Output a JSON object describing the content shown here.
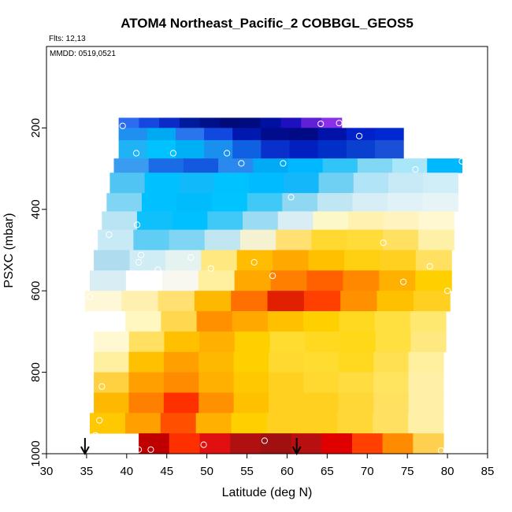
{
  "chart_data": {
    "type": "heatmap",
    "title": "ATOM4 Northeast_Pacific_2 COBBGL_GEOS5",
    "flights_label": "Flts: 12,13",
    "dates_label": "MMDD: 0519,0521",
    "xlabel": "Latitude (deg N)",
    "ylabel": "PSXC (mbar)",
    "xlim": [
      30,
      85
    ],
    "ylim": [
      1000,
      0
    ],
    "x_ticks": [
      "30",
      "35",
      "40",
      "45",
      "50",
      "55",
      "60",
      "65",
      "70",
      "75",
      "80",
      "85"
    ],
    "y_ticks": [
      "200",
      "400",
      "600",
      "800",
      "1000"
    ],
    "pressure_bands": [
      {
        "p_top": 175,
        "p_bot": 200,
        "lat_min": 39.0,
        "lat_max": 66.8,
        "colors": [
          "#2d6cf0",
          "#1448e0",
          "#0a2bc8",
          "#001a9e",
          "#00108a",
          "#000a78",
          "#000b80",
          "#0010a0",
          "#1e10c0",
          "#6020d8",
          "#8a30e8"
        ]
      },
      {
        "p_top": 200,
        "p_bot": 230,
        "lat_min": 39.0,
        "lat_max": 74.5,
        "colors": [
          "#1f8ff0",
          "#00aaf2",
          "#2a74ee",
          "#1048e0",
          "#0018b0",
          "#000c8c",
          "#000a84",
          "#0012a8",
          "#0022c8",
          "#0028d2"
        ]
      },
      {
        "p_top": 230,
        "p_bot": 275,
        "lat_min": 39.0,
        "lat_max": 74.5,
        "colors": [
          "#1fb2f5",
          "#00c2ff",
          "#00b0f5",
          "#1a90ee",
          "#1060e2",
          "#0a30cc",
          "#0020c0",
          "#0030c8",
          "#0a40d0",
          "#1a50d8"
        ]
      },
      {
        "p_top": 275,
        "p_bot": 310,
        "lat_min": 38.4,
        "lat_max": 81.8,
        "colors": [
          "#3a9cf0",
          "#1a6ce6",
          "#1458e0",
          "#2a88ee",
          "#00aaf5",
          "#00b8ff",
          "#30c4f8",
          "#80d8f4",
          "#a8e6fa",
          "#00b8ff"
        ]
      },
      {
        "p_top": 310,
        "p_bot": 360,
        "lat_min": 37.9,
        "lat_max": 81.3,
        "colors": [
          "#50c4f2",
          "#00c0ff",
          "#10bafa",
          "#00c2ff",
          "#00bbff",
          "#14b8fa",
          "#70d0f4",
          "#b0e4f6",
          "#c8eaf6",
          "#d0eef8"
        ]
      },
      {
        "p_top": 360,
        "p_bot": 405,
        "lat_min": 37.5,
        "lat_max": 81.3,
        "colors": [
          "#80d4f4",
          "#00c0ff",
          "#00bcfc",
          "#00c4ff",
          "#40c8f6",
          "#90d8f2",
          "#c0e6f4",
          "#d8eef6",
          "#e0f2f8",
          "#e6f4f8"
        ]
      },
      {
        "p_top": 405,
        "p_bot": 450,
        "lat_min": 36.9,
        "lat_max": 80.8,
        "colors": [
          "#b8e4f4",
          "#10c0fb",
          "#00c0ff",
          "#40c8f6",
          "#9cdcf2",
          "#d8eef4",
          "#fcf8c8",
          "#fff2b0",
          "#fff4c0",
          "#fff8d0"
        ]
      },
      {
        "p_top": 450,
        "p_bot": 500,
        "lat_min": 36.4,
        "lat_max": 80.8,
        "colors": [
          "#c8eaf6",
          "#60cef4",
          "#80d4f4",
          "#c0e6f2",
          "#f4f2d0",
          "#ffe070",
          "#ffd830",
          "#ffdc38",
          "#ffe060",
          "#fff0a8"
        ]
      },
      {
        "p_top": 500,
        "p_bot": 550,
        "lat_min": 35.9,
        "lat_max": 80.5,
        "colors": [
          "#b0dcf0",
          "#d0ecf4",
          "#e4f2f0",
          "#ffe880",
          "#ffbc00",
          "#ffa800",
          "#ffc000",
          "#ffd010",
          "#ffd020",
          "#ffe060"
        ]
      },
      {
        "p_top": 550,
        "p_bot": 600,
        "lat_min": 35.4,
        "lat_max": 80.5,
        "colors": [
          "#d8eef4",
          "#ffffff",
          "#f8f8f0",
          "#fff0a0",
          "#ffa800",
          "#ff8000",
          "#ff6000",
          "#ff8800",
          "#ffb000",
          "#ffd000"
        ]
      },
      {
        "p_top": 600,
        "p_bot": 650,
        "lat_min": 34.8,
        "lat_max": 80.3,
        "colors": [
          "#fff8d8",
          "#fff0b0",
          "#ffe070",
          "#ffb800",
          "#ff7000",
          "#e02000",
          "#ff4000",
          "#ff9000",
          "#ffc000",
          "#ffd020"
        ]
      },
      {
        "p_top": 650,
        "p_bot": 700,
        "lat_min": 35.4,
        "lat_max": 79.8,
        "colors": [
          "#ffffff",
          "#fff6c0",
          "#ffd850",
          "#ff9000",
          "#ffa800",
          "#ffc000",
          "#ffd000",
          "#ffd820",
          "#ffe040",
          "#ffe870"
        ]
      },
      {
        "p_top": 700,
        "p_bot": 750,
        "lat_min": 35.9,
        "lat_max": 79.8,
        "colors": [
          "#fff8d0",
          "#ffe060",
          "#ffc000",
          "#ffb000",
          "#ffd000",
          "#ffdc30",
          "#ffd820",
          "#ffd818",
          "#ffe040",
          "#ffe880"
        ]
      },
      {
        "p_top": 750,
        "p_bot": 800,
        "lat_min": 35.9,
        "lat_max": 79.5,
        "colors": [
          "#fff0a0",
          "#ffc000",
          "#ffa000",
          "#ffb800",
          "#ffd000",
          "#ffd830",
          "#ffdc30",
          "#ffd820",
          "#ffe050",
          "#fff0a0"
        ]
      },
      {
        "p_top": 800,
        "p_bot": 850,
        "lat_min": 35.9,
        "lat_max": 79.5,
        "colors": [
          "#ffd040",
          "#ffa000",
          "#ff8c00",
          "#ffb000",
          "#ffc800",
          "#ffd020",
          "#ffd830",
          "#ffdc40",
          "#ffe460",
          "#fff0a8"
        ]
      },
      {
        "p_top": 850,
        "p_bot": 900,
        "lat_min": 35.9,
        "lat_max": 79.5,
        "colors": [
          "#ffb800",
          "#ff8000",
          "#ff3000",
          "#ff9000",
          "#ffc000",
          "#ffd020",
          "#ffd020",
          "#ffd838",
          "#ffe060",
          "#fff0a8"
        ]
      },
      {
        "p_top": 900,
        "p_bot": 950,
        "lat_min": 35.4,
        "lat_max": 79.5,
        "colors": [
          "#ffc800",
          "#ffa000",
          "#ff5000",
          "#ffb000",
          "#ffd000",
          "#ffd020",
          "#ffd020",
          "#ffd838",
          "#ffe060",
          "#fff0a8"
        ]
      },
      {
        "p_top": 950,
        "p_bot": 1000,
        "lat_min": 41.5,
        "lat_max": 79.5,
        "colors": [
          "#c00000",
          "#ff3000",
          "#e01010",
          "#b01010",
          "#a01010",
          "#b81010",
          "#e00000",
          "#ff4000",
          "#ff8c00",
          "#ffd050"
        ]
      }
    ],
    "flight_points": [
      {
        "lat": 39.5,
        "p": 195
      },
      {
        "lat": 64.2,
        "p": 190
      },
      {
        "lat": 66.5,
        "p": 188
      },
      {
        "lat": 69.0,
        "p": 220
      },
      {
        "lat": 41.2,
        "p": 262
      },
      {
        "lat": 45.8,
        "p": 262
      },
      {
        "lat": 52.5,
        "p": 262
      },
      {
        "lat": 54.3,
        "p": 287
      },
      {
        "lat": 59.5,
        "p": 287
      },
      {
        "lat": 76.0,
        "p": 302
      },
      {
        "lat": 81.8,
        "p": 282
      },
      {
        "lat": 60.5,
        "p": 370
      },
      {
        "lat": 41.3,
        "p": 438
      },
      {
        "lat": 37.8,
        "p": 462
      },
      {
        "lat": 72.0,
        "p": 482
      },
      {
        "lat": 41.8,
        "p": 512
      },
      {
        "lat": 48.0,
        "p": 518
      },
      {
        "lat": 41.5,
        "p": 530
      },
      {
        "lat": 55.9,
        "p": 530
      },
      {
        "lat": 77.8,
        "p": 540
      },
      {
        "lat": 43.9,
        "p": 548
      },
      {
        "lat": 50.5,
        "p": 545
      },
      {
        "lat": 58.2,
        "p": 563
      },
      {
        "lat": 74.5,
        "p": 578
      },
      {
        "lat": 80.0,
        "p": 600
      },
      {
        "lat": 35.4,
        "p": 615
      },
      {
        "lat": 36.9,
        "p": 835
      },
      {
        "lat": 36.6,
        "p": 918
      },
      {
        "lat": 36.1,
        "p": 955
      },
      {
        "lat": 41.5,
        "p": 990
      },
      {
        "lat": 43.0,
        "p": 990
      },
      {
        "lat": 49.6,
        "p": 978
      },
      {
        "lat": 57.2,
        "p": 968
      },
      {
        "lat": 79.2,
        "p": 992
      }
    ],
    "arrows": [
      {
        "lat": 34.8
      },
      {
        "lat": 61.2
      }
    ]
  }
}
